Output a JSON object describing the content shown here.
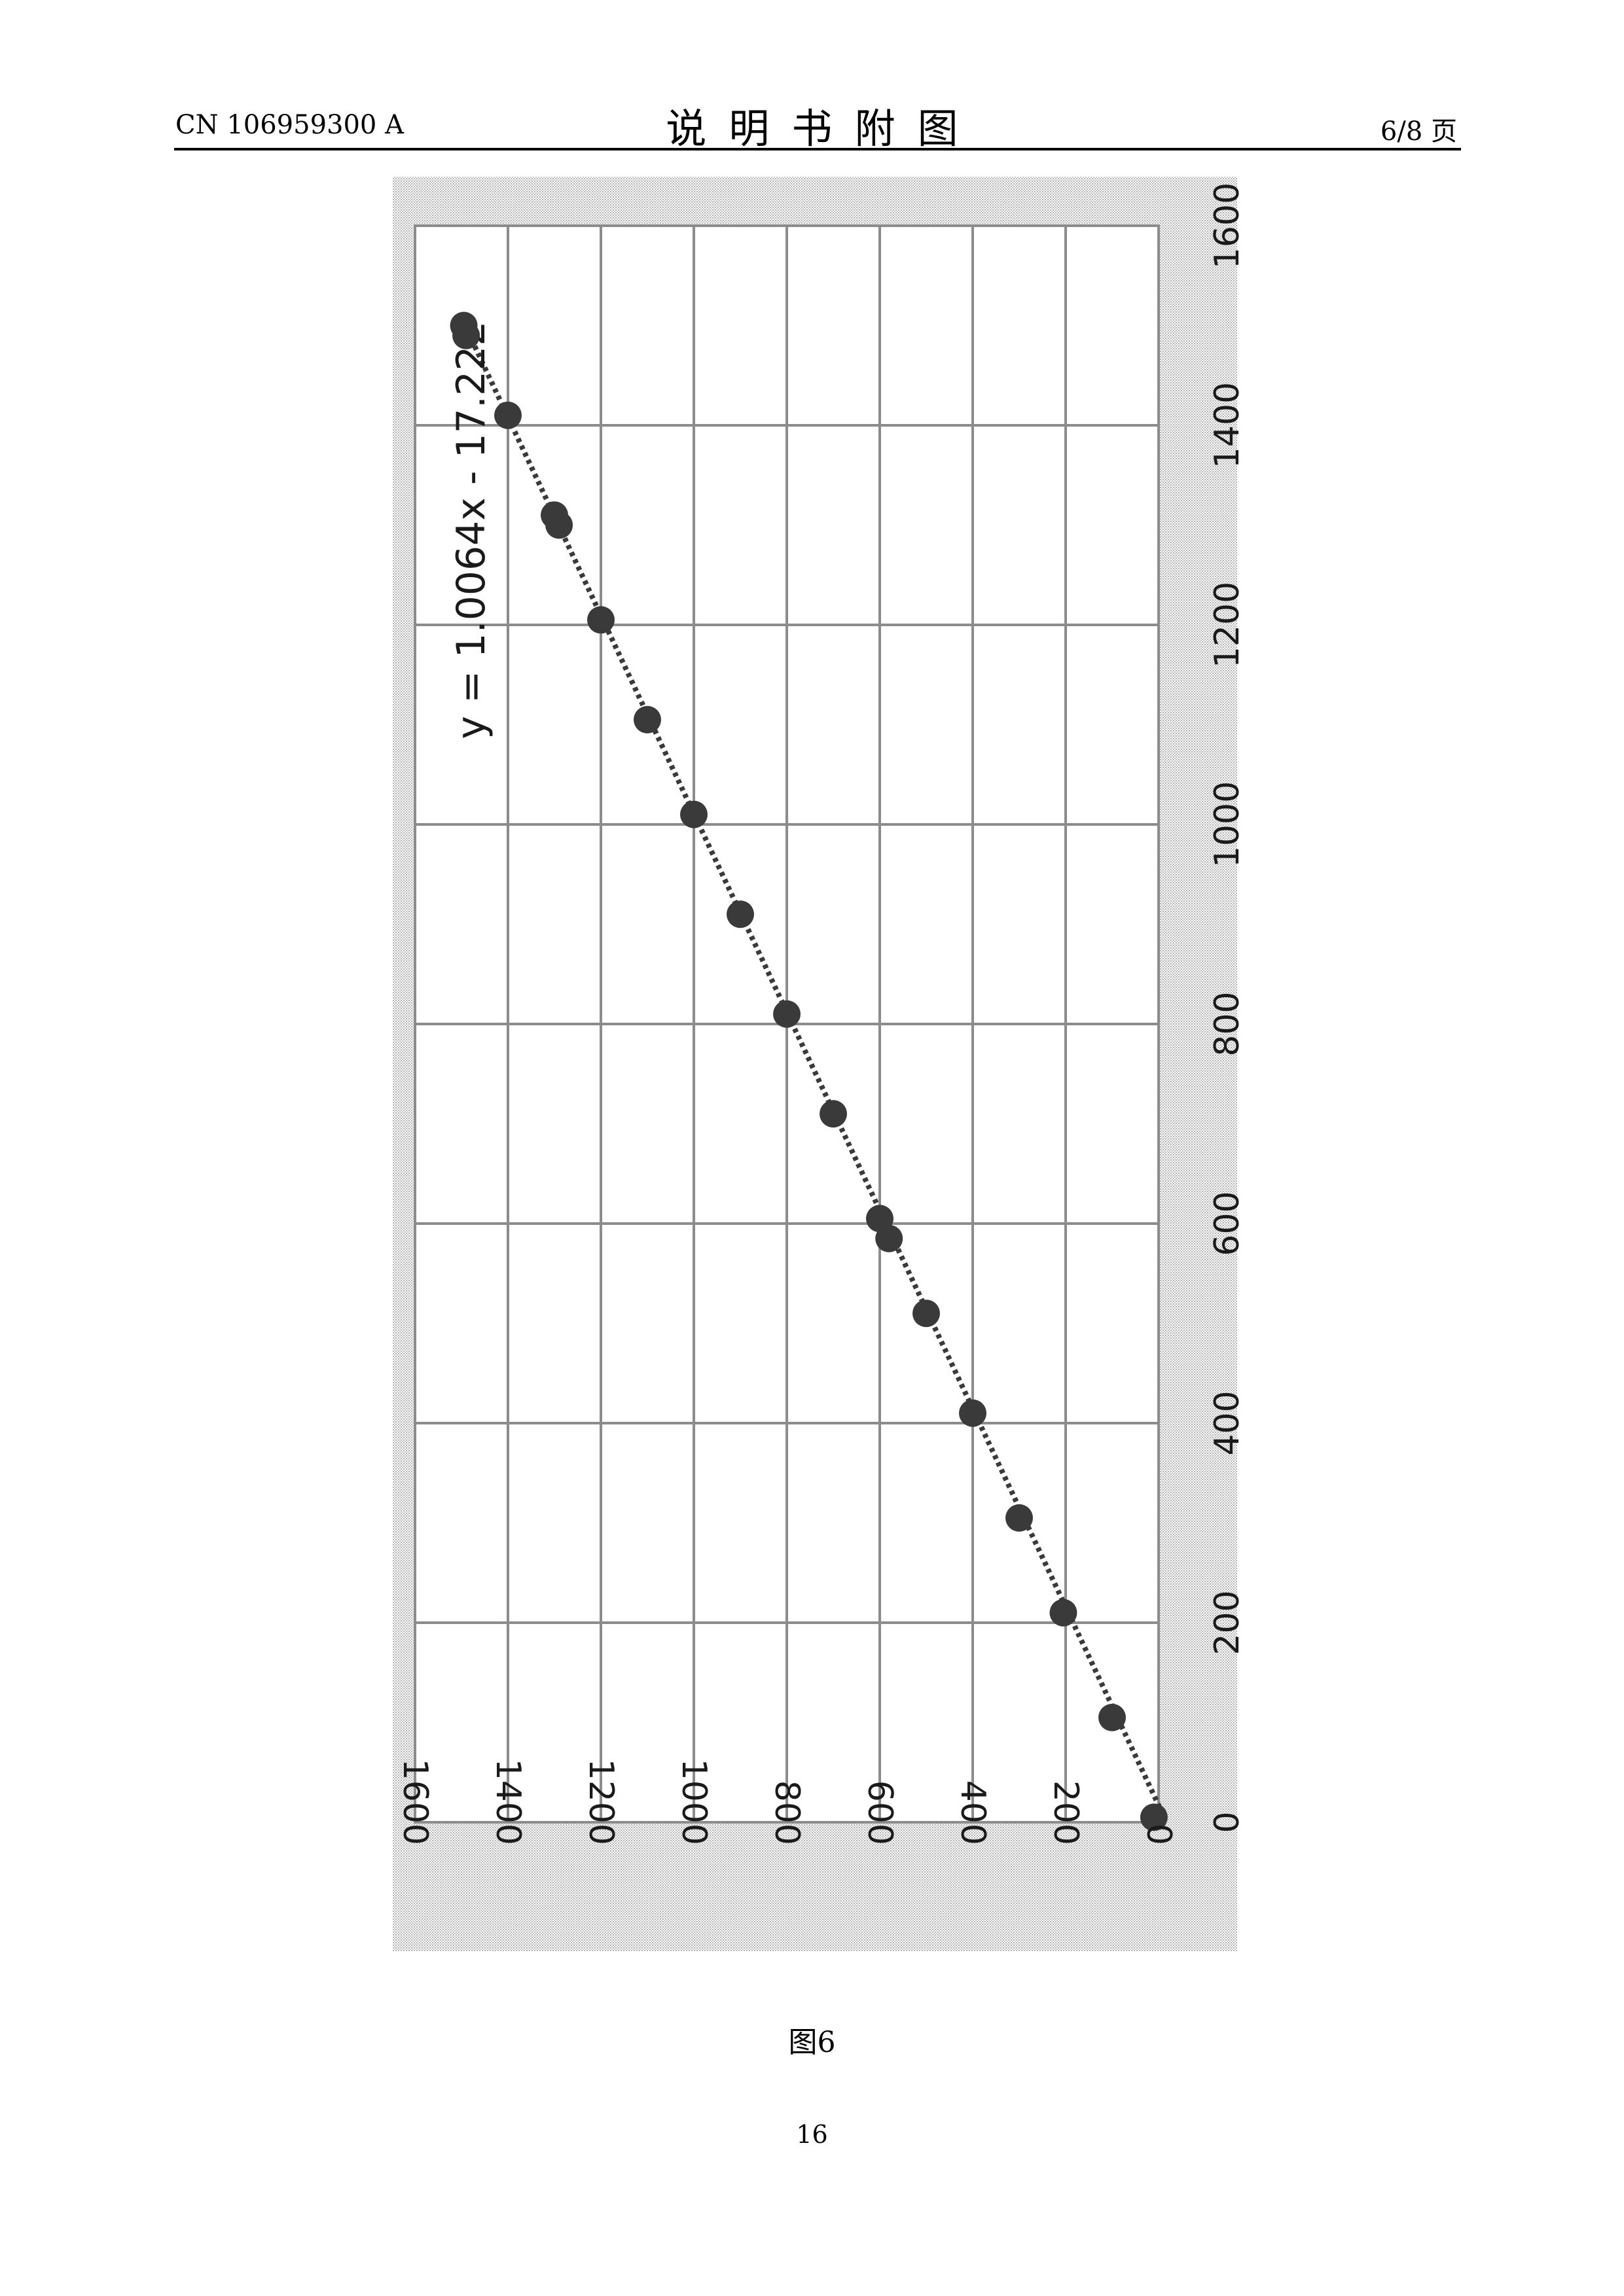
{
  "header": {
    "publication_number": "CN 106959300 A",
    "section_title": "说明书附图",
    "page_indicator": "6/8 页"
  },
  "figure": {
    "caption": "图6"
  },
  "footer": {
    "page_number": "16"
  },
  "colors": {
    "plot_background": "#d9d9d9",
    "grid": "#8c8c8c",
    "marker": "#3a3a3a",
    "trendline": "#3a3a3a"
  },
  "chart_data": {
    "type": "scatter",
    "orientation": "rotated 90° clockwise on the page",
    "title": "",
    "xlabel": "",
    "ylabel": "",
    "xlim": [
      0,
      1600
    ],
    "ylim": [
      0,
      1600
    ],
    "x_ticks": [
      "0",
      "200",
      "400",
      "600",
      "800",
      "1000",
      "1200",
      "1400",
      "1600"
    ],
    "y_ticks": [
      "0",
      "200",
      "400",
      "600",
      "800",
      "1000",
      "1200",
      "1400",
      "1600"
    ],
    "grid": true,
    "legend": "none",
    "series": [
      {
        "marker": "circle",
        "points": [
          [
            5,
            10
          ],
          [
            105,
            100
          ],
          [
            210,
            205
          ],
          [
            305,
            300
          ],
          [
            410,
            400
          ],
          [
            510,
            500
          ],
          [
            585,
            580
          ],
          [
            605,
            600
          ],
          [
            710,
            700
          ],
          [
            810,
            800
          ],
          [
            910,
            900
          ],
          [
            1010,
            1000
          ],
          [
            1105,
            1100
          ],
          [
            1205,
            1200
          ],
          [
            1300,
            1290
          ],
          [
            1310,
            1300
          ],
          [
            1410,
            1400
          ],
          [
            1490,
            1490
          ],
          [
            1500,
            1495
          ]
        ]
      }
    ],
    "trendline": {
      "equation": "y = 1.0064x - 17.222",
      "slope": 1.0064,
      "intercept": -17.222,
      "style": "dotted"
    }
  }
}
